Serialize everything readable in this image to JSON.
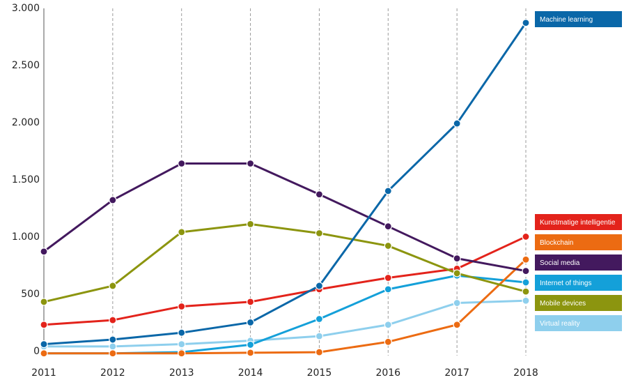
{
  "chart_data": {
    "type": "line",
    "x": [
      "2011",
      "2012",
      "2013",
      "2014",
      "2015",
      "2016",
      "2017",
      "2018"
    ],
    "ylim": [
      0,
      3000
    ],
    "y_ticks": [
      0,
      500,
      1000,
      1500,
      2000,
      2500,
      3000
    ],
    "y_tick_labels": [
      "0",
      "500",
      "1.000",
      "1.500",
      "2.000",
      "2.500",
      "3.000"
    ],
    "grid": "vertical dashed",
    "legend_placement": "right",
    "series": [
      {
        "name": "Machine learning",
        "color": "#0a67a8",
        "values": [
          100,
          140,
          200,
          290,
          610,
          1440,
          2030,
          2910
        ]
      },
      {
        "name": "Kunstmatige intelligentie",
        "color": "#e3231b",
        "values": [
          270,
          310,
          430,
          470,
          580,
          680,
          760,
          1040
        ]
      },
      {
        "name": "Blockchain",
        "color": "#ec6b12",
        "values": [
          20,
          20,
          20,
          25,
          30,
          120,
          270,
          840
        ]
      },
      {
        "name": "Social media",
        "color": "#43195e",
        "values": [
          910,
          1360,
          1680,
          1680,
          1410,
          1130,
          850,
          740
        ]
      },
      {
        "name": "Internet of things",
        "color": "#14a0d9",
        "values": [
          20,
          20,
          30,
          95,
          320,
          580,
          700,
          640
        ]
      },
      {
        "name": "Mobile devices",
        "color": "#8c950f",
        "values": [
          470,
          610,
          1080,
          1150,
          1070,
          960,
          720,
          560
        ]
      },
      {
        "name": "Virtual reality",
        "color": "#8ecfed",
        "values": [
          80,
          80,
          100,
          130,
          170,
          270,
          460,
          480
        ]
      }
    ]
  }
}
